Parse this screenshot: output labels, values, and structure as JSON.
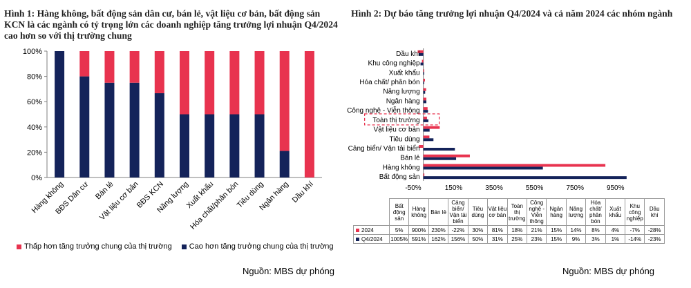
{
  "left": {
    "title": "Hình 1: Hàng không, bất động sản dân cư, bán lẻ, vật liệu cơ bản, bất động sản KCN là các ngành có tỷ trọng lớn các doanh nghiệp tăng trưởng lợi nhuận Q4/2024 cao hơn so với thị trường chung",
    "source": "Nguồn: MBS dự phóng",
    "legend": [
      "Thấp hơn tăng trưởng chung của thị trường",
      "Cao hơn tăng trưởng chung của thị trường"
    ]
  },
  "right": {
    "title": "Hình 2: Dự báo tăng trưởng lợi nhuận Q4/2024 và cả năm 2024 các nhóm ngành",
    "source": "Nguồn: MBS dự phóng",
    "highlight_label": "Toàn thị trường",
    "table": {
      "headers": [
        "Bất động sản",
        "Hàng không",
        "Bán lẻ",
        "Cảng biển/ Vận tải biển",
        "Tiêu dùng",
        "Vật liệu cơ bản",
        "Toàn thị trường",
        "Công nghệ - Viễn thông",
        "Ngân hàng",
        "Năng lượng",
        "Hóa chất/ phân bón",
        "Xuất khẩu",
        "Khu công nghiệp",
        "Dầu khí"
      ],
      "rows": [
        {
          "label": "2024",
          "values": [
            "5%",
            "900%",
            "230%",
            "-22%",
            "30%",
            "81%",
            "18%",
            "21%",
            "15%",
            "14%",
            "8%",
            "4%",
            "-7%",
            "-28%"
          ]
        },
        {
          "label": "Q4/2024",
          "values": [
            "1005%",
            "591%",
            "162%",
            "156%",
            "50%",
            "31%",
            "25%",
            "23%",
            "15%",
            "9%",
            "3%",
            "1%",
            "-14%",
            "-23%"
          ]
        }
      ]
    }
  },
  "colors": {
    "red": "#e8334f",
    "navy": "#14235a",
    "highlight": "#e8334f"
  },
  "chart_data": [
    {
      "type": "bar",
      "stacked": true,
      "categories": [
        "Hàng không",
        "BĐS Dân cư",
        "Bán lẻ",
        "Vật liệu cơ bản",
        "BĐS KCN",
        "Năng lượng",
        "Xuất khẩu",
        "Hóa chất/phân bón",
        "Tiêu dùng",
        "Ngân hàng",
        "Dầu khí"
      ],
      "series": [
        {
          "name": "Cao hơn tăng trưởng chung của thị trường",
          "values": [
            100,
            80,
            75,
            75,
            66.7,
            50,
            50,
            50,
            50,
            21,
            0
          ]
        },
        {
          "name": "Thấp hơn tăng trưởng chung của thị trường",
          "values": [
            0,
            20,
            25,
            25,
            33.3,
            50,
            50,
            50,
            50,
            79,
            100
          ]
        }
      ],
      "yticks": [
        "0%",
        "20%",
        "40%",
        "60%",
        "80%",
        "100%"
      ],
      "ylim": [
        0,
        100
      ],
      "grid": false,
      "legend_position": "bottom"
    },
    {
      "type": "bar",
      "orientation": "horizontal",
      "categories": [
        "Dầu khí",
        "Khu công nghiệp",
        "Xuất khẩu",
        "Hóa chất/ phân bón",
        "Năng lượng",
        "Ngân hàng",
        "Công nghệ - Viễn thông",
        "Toàn thị trường",
        "Vật liệu cơ bản",
        "Tiêu dùng",
        "Cảng biển/ Vận tải biển",
        "Bán lẻ",
        "Hàng không",
        "Bất động sản"
      ],
      "series": [
        {
          "name": "2024",
          "values": [
            -28,
            -7,
            4,
            8,
            14,
            15,
            21,
            18,
            81,
            30,
            -22,
            230,
            900,
            5
          ]
        },
        {
          "name": "Q4/2024",
          "values": [
            -23,
            -14,
            1,
            3,
            9,
            15,
            23,
            25,
            31,
            50,
            156,
            162,
            591,
            1005
          ]
        }
      ],
      "xticks": [
        "-50%",
        "150%",
        "350%",
        "550%",
        "750%",
        "950%"
      ],
      "xlim": [
        -50,
        1050
      ],
      "legend_position": "bottom"
    }
  ]
}
